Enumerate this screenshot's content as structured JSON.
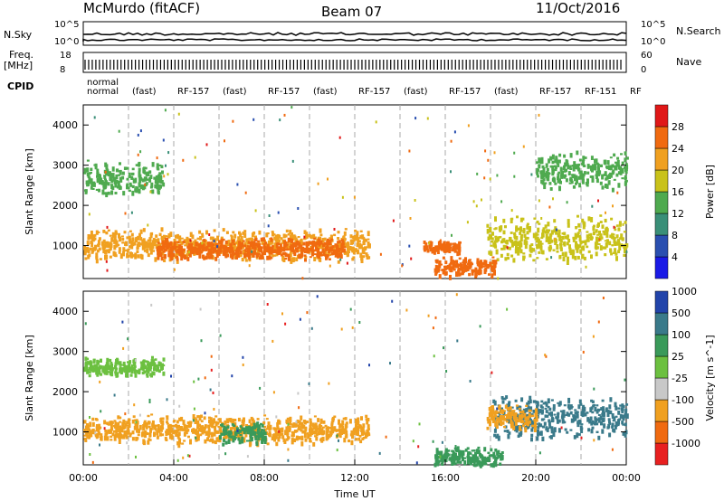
{
  "header": {
    "station": "McMurdo (fitACF)",
    "beam": "Beam 07",
    "date": "11/Oct/2016"
  },
  "strip_labels": {
    "nsky": "N.Sky",
    "nsearch": "N.Search",
    "freq_line1": "Freq.",
    "freq_line2": "[MHz]",
    "nave": "Nave",
    "cpid": "CPID",
    "nsky_ticks": [
      "10^5",
      "10^0"
    ],
    "nsearch_ticks": [
      "10^5",
      "10^0"
    ],
    "freq_ticks": [
      "18",
      "8"
    ],
    "nave_ticks": [
      "60",
      "0"
    ]
  },
  "cpid_labels": [
    "normal",
    "normal",
    "(fast)",
    "RF-157",
    "(fast)",
    "RF-157",
    "(fast)",
    "RF-157",
    "(fast)",
    "RF-157",
    "(fast)",
    "RF-157",
    "RF-151",
    "RF"
  ],
  "chart_data": [
    {
      "type": "heatmap",
      "panel": "power",
      "ylabel": "Slant Range [km]",
      "y_ticks": [
        1000,
        2000,
        3000,
        4000
      ],
      "ylim": [
        180,
        4500
      ],
      "xlim": [
        0,
        24
      ],
      "colorbar_label": "Power [dB]",
      "colorbar_ticks": [
        4,
        8,
        12,
        16,
        20,
        24,
        28
      ],
      "colorbar_colors": [
        "#1a1ae6",
        "#2a4fb0",
        "#3a8f78",
        "#4faa4f",
        "#c9c21a",
        "#f0a020",
        "#f06a10",
        "#e01818"
      ],
      "echo_bands": [
        {
          "t_start": 0.0,
          "t_end": 12.6,
          "r_center": 1050,
          "r_width": 420,
          "level": 20
        },
        {
          "t_start": 3.2,
          "t_end": 11.5,
          "r_center": 950,
          "r_width": 280,
          "level": 26
        },
        {
          "t_start": 0.0,
          "t_end": 3.5,
          "r_center": 2700,
          "r_width": 450,
          "level": 12
        },
        {
          "t_start": 17.8,
          "t_end": 24.0,
          "r_center": 1200,
          "r_width": 600,
          "level": 18
        },
        {
          "t_start": 20.0,
          "t_end": 24.0,
          "r_center": 2900,
          "r_width": 500,
          "level": 12
        },
        {
          "t_start": 15.5,
          "t_end": 18.2,
          "r_center": 500,
          "r_width": 260,
          "level": 26
        },
        {
          "t_start": 15.0,
          "t_end": 16.6,
          "r_center": 1000,
          "r_width": 150,
          "level": 24
        }
      ]
    },
    {
      "type": "heatmap",
      "panel": "velocity",
      "ylabel": "Slant Range [km]",
      "y_ticks": [
        1000,
        2000,
        3000,
        4000
      ],
      "ylim": [
        180,
        4500
      ],
      "xlim": [
        0,
        24
      ],
      "colorbar_label": "Velocity [m s^-1]",
      "colorbar_ticks": [
        1000,
        500,
        100,
        25,
        -25,
        -100,
        -500,
        -1000
      ],
      "colorbar_colors": [
        "#2244aa",
        "#3a7a8a",
        "#3a9a5a",
        "#6cc040",
        "#c8c8c8",
        "#f0a020",
        "#f06a10",
        "#e82020"
      ],
      "echo_bands": [
        {
          "t_start": 0.0,
          "t_end": 12.6,
          "r_center": 1100,
          "r_width": 380,
          "level": -100
        },
        {
          "t_start": 6.0,
          "t_end": 8.0,
          "r_center": 1000,
          "r_width": 300,
          "level": 100
        },
        {
          "t_start": 0.0,
          "t_end": 3.5,
          "r_center": 2650,
          "r_width": 250,
          "level": 25
        },
        {
          "t_start": 18.0,
          "t_end": 24.0,
          "r_center": 1400,
          "r_width": 600,
          "level": 500
        },
        {
          "t_start": 17.8,
          "t_end": 20.0,
          "r_center": 1400,
          "r_width": 350,
          "level": -100
        },
        {
          "t_start": 15.5,
          "t_end": 18.5,
          "r_center": 400,
          "r_width": 250,
          "level": 100
        }
      ]
    }
  ],
  "x_axis": {
    "label": "Time UT",
    "ticks": [
      "00:00",
      "04:00",
      "08:00",
      "12:00",
      "16:00",
      "20:00",
      "00:00"
    ]
  }
}
